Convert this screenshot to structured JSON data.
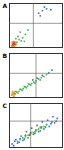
{
  "chart_data": [
    {
      "type": "scatter",
      "title": "A",
      "xlim": [
        0,
        100
      ],
      "ylim": [
        0,
        100
      ],
      "tick_labels": false,
      "gates": {
        "x": 45,
        "y": 55
      },
      "series": [
        {
          "color": "#e89a2c",
          "x": [
            4,
            6,
            8,
            9,
            11,
            5,
            7,
            10,
            12,
            6,
            8,
            13,
            9,
            7,
            5,
            11
          ],
          "values": [
            4,
            6,
            5,
            8,
            6,
            10,
            12,
            11,
            9,
            3,
            14,
            7,
            3,
            9,
            13,
            13
          ]
        },
        {
          "color": "#d9472b",
          "x": [
            6,
            8,
            10,
            7,
            9
          ],
          "values": [
            7,
            9,
            7,
            5,
            11
          ]
        },
        {
          "color": "#4caf50",
          "x": [
            14,
            18,
            22,
            16,
            25,
            30,
            12,
            20,
            35,
            28
          ],
          "values": [
            12,
            18,
            15,
            25,
            22,
            30,
            20,
            35,
            40,
            14
          ]
        },
        {
          "color": "#3a6fc4",
          "x": [
            55,
            62,
            70,
            78,
            66,
            58
          ],
          "values": [
            78,
            84,
            88,
            86,
            92,
            72
          ]
        }
      ]
    },
    {
      "type": "scatter",
      "title": "B",
      "xlim": [
        0,
        100
      ],
      "ylim": [
        0,
        100
      ],
      "tick_labels": false,
      "gates": {
        "x": 50,
        "y": 55
      },
      "series": [
        {
          "color": "#e89a2c",
          "x": [
            4,
            6,
            8,
            5,
            7,
            9,
            10,
            6,
            8,
            11
          ],
          "values": [
            5,
            7,
            6,
            10,
            11,
            9,
            13,
            14,
            3,
            8
          ]
        },
        {
          "color": "#4caf50",
          "x": [
            10,
            14,
            18,
            22,
            26,
            30,
            34,
            38,
            42,
            46,
            50,
            55,
            60,
            65,
            70,
            16,
            24,
            32,
            40,
            48,
            58,
            12,
            20,
            28,
            36
          ],
          "values": [
            9,
            12,
            14,
            18,
            20,
            24,
            26,
            30,
            32,
            35,
            38,
            42,
            45,
            48,
            52,
            10,
            16,
            22,
            28,
            33,
            40,
            14,
            19,
            25,
            31
          ]
        },
        {
          "color": "#3a6fc4",
          "x": [
            44,
            52,
            62,
            74,
            80
          ],
          "values": [
            40,
            44,
            50,
            56,
            62
          ]
        }
      ]
    },
    {
      "type": "scatter",
      "title": "C",
      "xlim": [
        0,
        100
      ],
      "ylim": [
        0,
        100
      ],
      "tick_labels": false,
      "gates": {
        "x": 40,
        "y": 60
      },
      "series": [
        {
          "color": "#3a6fc4",
          "x": [
            5,
            10,
            15,
            20,
            25,
            30,
            35,
            40,
            45,
            50,
            55,
            60,
            65,
            70,
            75,
            80,
            85,
            90,
            12,
            22,
            32,
            42,
            52,
            62,
            72,
            82,
            8,
            18,
            28,
            38,
            48,
            58,
            68,
            78,
            88
          ],
          "values": [
            8,
            14,
            10,
            20,
            16,
            28,
            22,
            34,
            30,
            40,
            36,
            46,
            42,
            52,
            48,
            58,
            56,
            66,
            18,
            26,
            36,
            44,
            50,
            58,
            62,
            70,
            4,
            12,
            18,
            28,
            32,
            38,
            46,
            54,
            60
          ]
        },
        {
          "color": "#4caf50",
          "x": [
            15,
            20,
            25,
            30,
            35,
            40,
            45,
            50,
            55,
            60,
            65,
            70,
            28,
            38,
            48,
            58
          ],
          "values": [
            14,
            18,
            22,
            24,
            28,
            32,
            34,
            38,
            42,
            44,
            48,
            52,
            20,
            30,
            36,
            46
          ]
        },
        {
          "color": "#e8c22c",
          "x": [
            33,
            43,
            53,
            63
          ],
          "values": [
            27,
            35,
            40,
            47
          ]
        }
      ]
    }
  ]
}
